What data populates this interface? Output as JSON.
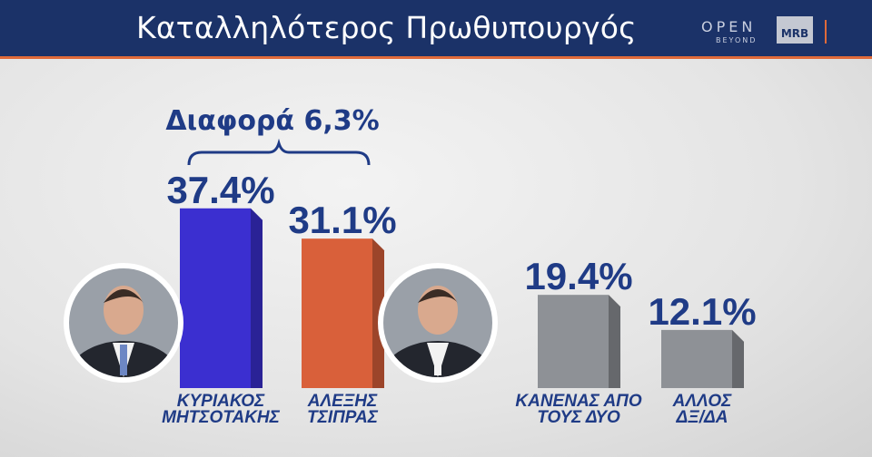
{
  "header": {
    "title": "Καταλληλότερος Πρωθυπουργός",
    "logo_open": "OPEN",
    "logo_beyond": "BEYOND",
    "logo_mrb": "MRB"
  },
  "difference_label": "Διαφορά 6,3%",
  "colors": {
    "header_bg": "#1b3268",
    "accent": "#e06a3a",
    "text_blue": "#1f3b86",
    "bar_mitsotakis": "#3b2fd0",
    "bar_tsipras": "#d9603a",
    "bar_gray": "#8e9196"
  },
  "chart_data": {
    "type": "bar",
    "title": "Καταλληλότερος Πρωθυπουργός",
    "categories": [
      [
        "ΚΥΡΙΑΚΟΣ",
        "ΜΗΤΣΟΤΑΚΗΣ"
      ],
      [
        "ΑΛΕΞΗΣ",
        "ΤΣΙΠΡΑΣ"
      ],
      [
        "ΚΑΝΕΝΑΣ ΑΠΟ",
        "ΤΟΥΣ ΔΥΟ"
      ],
      [
        "ΑΛΛΟΣ",
        "ΔΞ/ΔΑ"
      ]
    ],
    "values": [
      37.4,
      31.1,
      19.4,
      12.1
    ],
    "value_labels": [
      "37.4%",
      "31.1%",
      "19.4%",
      "12.1%"
    ],
    "colors": [
      "#3b2fd0",
      "#d9603a",
      "#8e9196",
      "#8e9196"
    ],
    "photos": [
      "person-photo",
      "person-photo",
      null,
      null
    ],
    "annotation": "Διαφορά 6,3%"
  }
}
